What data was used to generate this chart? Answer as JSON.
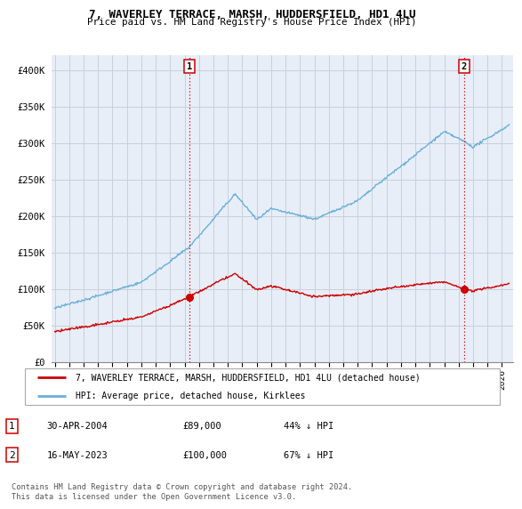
{
  "title": "7, WAVERLEY TERRACE, MARSH, HUDDERSFIELD, HD1 4LU",
  "subtitle": "Price paid vs. HM Land Registry's House Price Index (HPI)",
  "ylabel_ticks": [
    "£0",
    "£50K",
    "£100K",
    "£150K",
    "£200K",
    "£250K",
    "£300K",
    "£350K",
    "£400K"
  ],
  "ytick_values": [
    0,
    50000,
    100000,
    150000,
    200000,
    250000,
    300000,
    350000,
    400000
  ],
  "ylim": [
    0,
    420000
  ],
  "xlim_start": 1994.8,
  "xlim_end": 2026.8,
  "hpi_color": "#6ab0d8",
  "price_color": "#cc0000",
  "bg_color": "#e8eef8",
  "grid_color": "#c8d0dc",
  "sale1_x": 2004.33,
  "sale1_y": 89000,
  "sale2_x": 2023.37,
  "sale2_y": 100000,
  "legend_line1": "7, WAVERLEY TERRACE, MARSH, HUDDERSFIELD, HD1 4LU (detached house)",
  "legend_line2": "HPI: Average price, detached house, Kirklees",
  "table_row1": [
    "1",
    "30-APR-2004",
    "£89,000",
    "44% ↓ HPI"
  ],
  "table_row2": [
    "2",
    "16-MAY-2023",
    "£100,000",
    "67% ↓ HPI"
  ],
  "footnote": "Contains HM Land Registry data © Crown copyright and database right 2024.\nThis data is licensed under the Open Government Licence v3.0."
}
